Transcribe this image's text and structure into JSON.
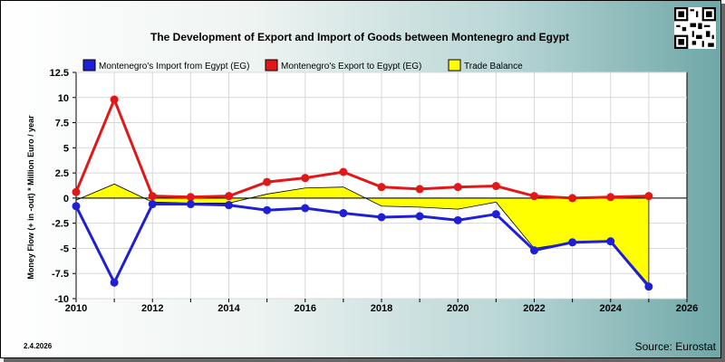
{
  "footer": {
    "date": "2.4.2026",
    "source": "Source: Eurostat"
  },
  "chart_data": {
    "type": "line",
    "title": "The Development of Export and Import of Goods between Montenegro and Egypt",
    "ylabel": "Money Flow (+ in -out) * Million Euro / year",
    "xlabel": "",
    "x": [
      2010,
      2011,
      2012,
      2013,
      2014,
      2015,
      2016,
      2017,
      2018,
      2019,
      2020,
      2021,
      2022,
      2023,
      2024,
      2025
    ],
    "xlim": [
      2010,
      2026
    ],
    "ylim": [
      -10,
      12.5
    ],
    "xticks": [
      "2010",
      "2012",
      "2014",
      "2016",
      "2018",
      "2020",
      "2022",
      "2024",
      "2026"
    ],
    "yticks": [
      "12.5",
      "10",
      "7.5",
      "5",
      "2.5",
      "0",
      "-2.5",
      "-5",
      "-7.5",
      "-10"
    ],
    "grid": true,
    "legend_position": "top",
    "series": [
      {
        "name": "Montenegro's Import from Egypt (EG)",
        "color": "#1f1fd6",
        "values": [
          -0.8,
          -8.4,
          -0.6,
          -0.6,
          -0.7,
          -1.2,
          -1.0,
          -1.5,
          -1.9,
          -1.8,
          -2.2,
          -1.6,
          -5.2,
          -4.4,
          -4.3,
          -8.8
        ]
      },
      {
        "name": "Montenegro's Export to Egypt (EG)",
        "color": "#e01818",
        "values": [
          0.6,
          9.8,
          0.2,
          0.1,
          0.2,
          1.6,
          2.0,
          2.6,
          1.1,
          0.9,
          1.1,
          1.2,
          0.2,
          0.0,
          0.1,
          0.2
        ]
      },
      {
        "name": "Trade Balance",
        "color": "#ffff00",
        "values": [
          -0.2,
          1.4,
          -0.4,
          -0.5,
          -0.5,
          0.4,
          1.0,
          1.1,
          -0.8,
          -0.9,
          -1.1,
          -0.4,
          -5.0,
          -4.4,
          -4.2,
          -8.6
        ]
      }
    ]
  }
}
